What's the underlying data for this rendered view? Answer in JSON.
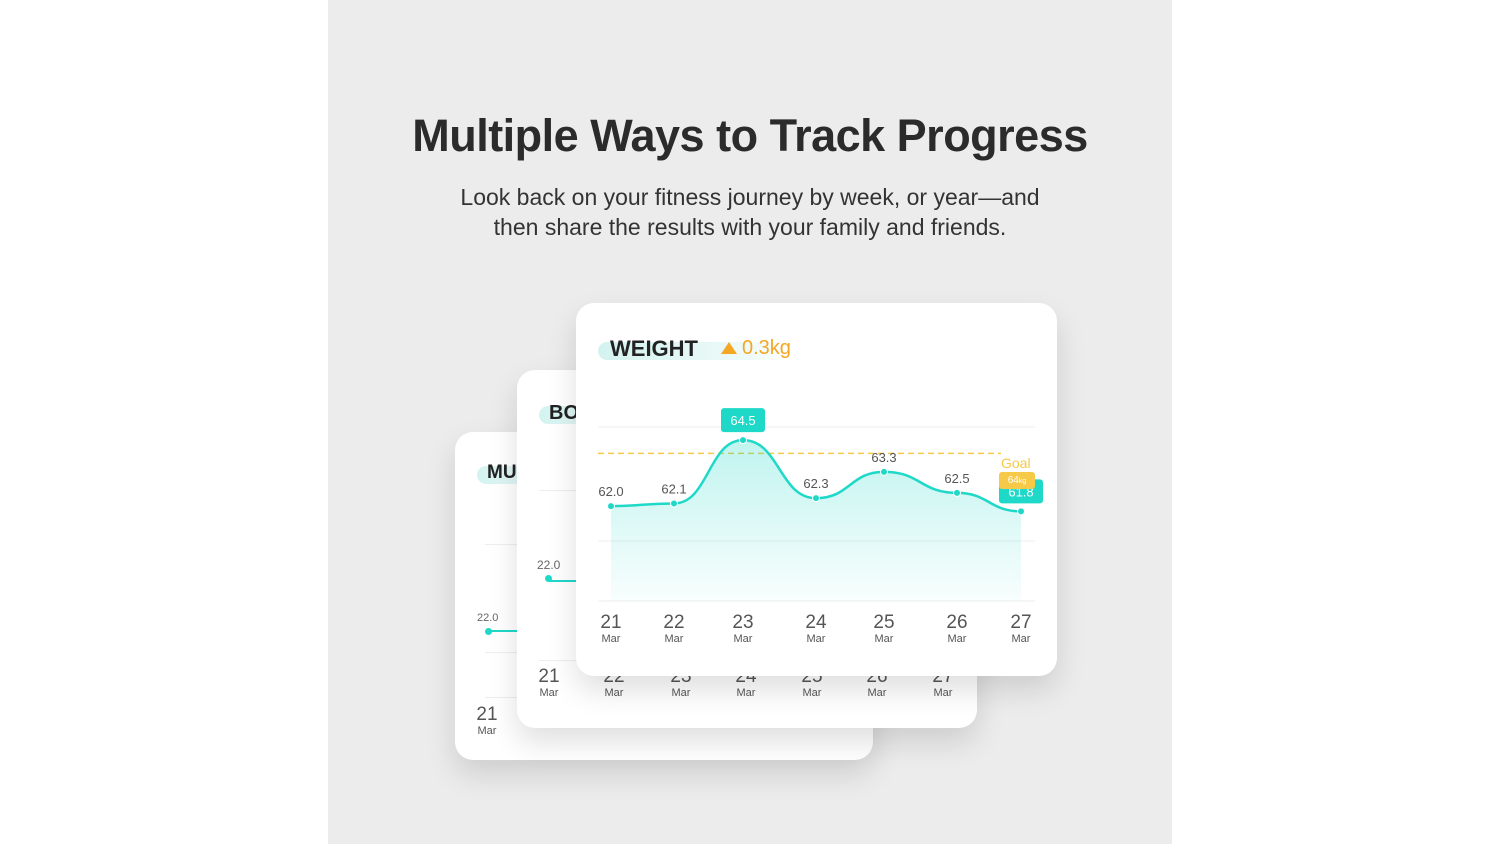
{
  "header": {
    "title": "Multiple Ways to Track Progress",
    "subtitle_line1": "Look back on your fitness journey by week, or year—and",
    "subtitle_line2": "then share the results with your family and friends."
  },
  "back_cards": [
    {
      "label": "MU",
      "value_label": "22.0",
      "dates": [
        {
          "day": "21",
          "month": "Mar"
        }
      ]
    },
    {
      "label": "BO",
      "value_label": "22.0",
      "dates": [
        {
          "day": "21",
          "month": "Mar"
        },
        {
          "day": "22",
          "month": "Mar"
        },
        {
          "day": "23",
          "month": "Mar"
        },
        {
          "day": "24",
          "month": "Mar"
        },
        {
          "day": "25",
          "month": "Mar"
        },
        {
          "day": "26",
          "month": "Mar"
        },
        {
          "day": "27",
          "month": "Mar"
        }
      ]
    }
  ],
  "weight_card": {
    "title": "WEIGHT",
    "change": "0.3kg",
    "change_icon": "triangle-up-icon",
    "goal_label": "Goal",
    "goal_value": "64",
    "goal_unit": "kg"
  },
  "colors": {
    "teal": "#1ed8c8",
    "orange": "#f5a623",
    "goal": "#f7c948",
    "background": "#ececec"
  },
  "chart_data": {
    "type": "area",
    "categories": [
      {
        "day": "21",
        "month": "Mar"
      },
      {
        "day": "22",
        "month": "Mar"
      },
      {
        "day": "23",
        "month": "Mar"
      },
      {
        "day": "24",
        "month": "Mar"
      },
      {
        "day": "25",
        "month": "Mar"
      },
      {
        "day": "26",
        "month": "Mar"
      },
      {
        "day": "27",
        "month": "Mar"
      }
    ],
    "values": [
      62.0,
      62.1,
      64.5,
      62.3,
      63.3,
      62.5,
      61.8
    ],
    "labels": [
      "62.0",
      "62.1",
      "64.5",
      "62.3",
      "63.3",
      "62.5",
      "61.8"
    ],
    "highlighted": [
      2,
      6
    ],
    "goal": 64,
    "ylim": [
      60.6,
      65.0
    ],
    "grid": true
  }
}
